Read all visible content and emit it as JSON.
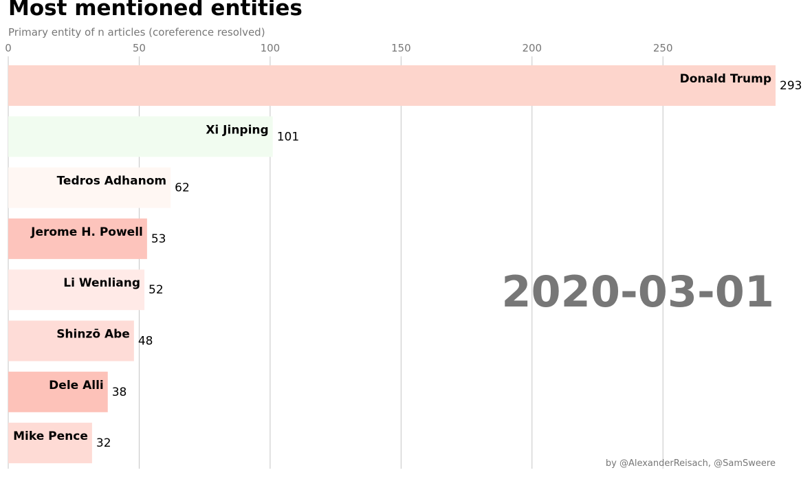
{
  "chart_data": {
    "type": "bar",
    "orientation": "horizontal",
    "title": "Most mentioned entities",
    "subtitle": "Primary entity of n articles (coreference resolved)",
    "date": "2020-03-01",
    "credit": "by @AlexanderReisach, @SamSweere",
    "xlim": [
      0,
      293
    ],
    "x_ticks": [
      0,
      50,
      100,
      150,
      200,
      250
    ],
    "grid": true,
    "bars": [
      {
        "label": "Donald Trump",
        "value": 293,
        "color": "#fdd5cc"
      },
      {
        "label": "Xi Jinping",
        "value": 101,
        "color": "#f1fcf0"
      },
      {
        "label": "Tedros Adhanom",
        "value": 62,
        "color": "#fff7f3"
      },
      {
        "label": "Jerome H. Powell",
        "value": 53,
        "color": "#fdc4bc"
      },
      {
        "label": "Li Wenliang",
        "value": 52,
        "color": "#ffeae7"
      },
      {
        "label": "Shinzō Abe",
        "value": 48,
        "color": "#fedcd7"
      },
      {
        "label": "Dele Alli",
        "value": 38,
        "color": "#fdc2b9"
      },
      {
        "label": "Mike Pence",
        "value": 32,
        "color": "#fedbd5"
      }
    ]
  }
}
